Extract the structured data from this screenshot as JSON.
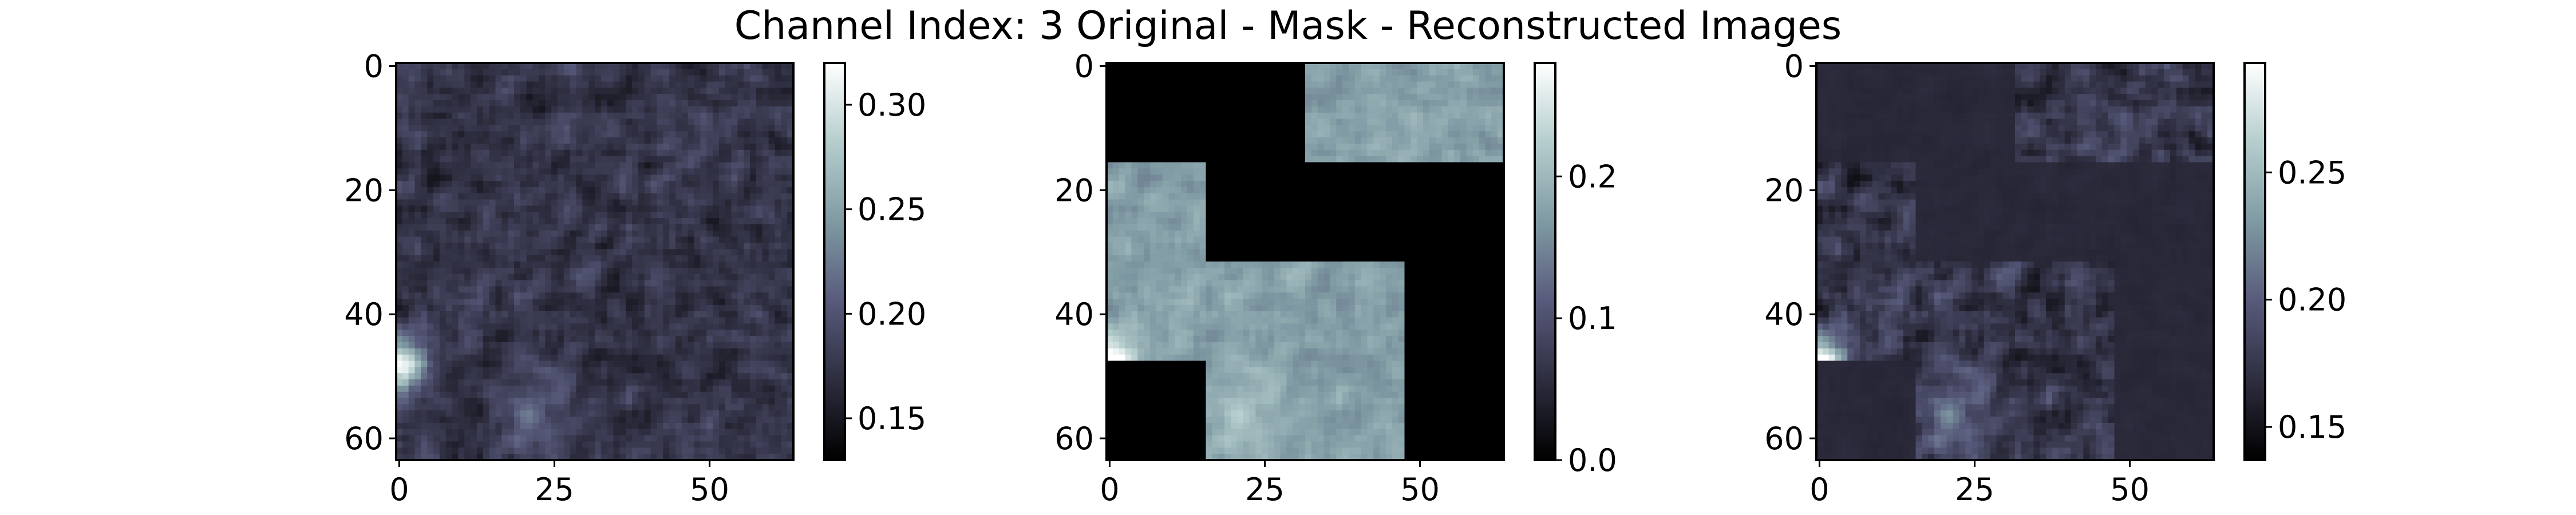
{
  "figure": {
    "title": "Channel Index: 3 Original - Mask - Reconstructed Images"
  },
  "colormap": [
    "#000000",
    "#2d2d3f",
    "#585a7b",
    "#7f9aa3",
    "#b5cdcd",
    "#ffffff"
  ],
  "chart_data": [
    {
      "type": "heatmap",
      "panel": "original",
      "xlim": [
        0,
        63
      ],
      "ylim": [
        0,
        63
      ],
      "x_ticks": [
        "0",
        "25",
        "50"
      ],
      "y_ticks": [
        "0",
        "20",
        "40",
        "60"
      ],
      "colorbar": {
        "range": [
          0.13,
          0.32
        ],
        "ticks": [
          "0.15",
          "0.20",
          "0.25",
          "0.30"
        ]
      }
    },
    {
      "type": "heatmap",
      "panel": "mask",
      "xlim": [
        0,
        63
      ],
      "ylim": [
        0,
        63
      ],
      "x_ticks": [
        "0",
        "25",
        "50"
      ],
      "y_ticks": [
        "0",
        "20",
        "40",
        "60"
      ],
      "patch_grid": {
        "rows": 4,
        "cols": 4,
        "patch_size": 16
      },
      "visible_patches": [
        [
          0,
          2
        ],
        [
          0,
          3
        ],
        [
          1,
          0
        ],
        [
          2,
          0
        ],
        [
          2,
          1
        ],
        [
          2,
          2
        ],
        [
          3,
          1
        ],
        [
          3,
          2
        ]
      ],
      "colorbar": {
        "range": [
          0.0,
          0.28
        ],
        "ticks": [
          "0.0",
          "0.1",
          "0.2"
        ]
      }
    },
    {
      "type": "heatmap",
      "panel": "reconstructed",
      "xlim": [
        0,
        63
      ],
      "ylim": [
        0,
        63
      ],
      "x_ticks": [
        "0",
        "25",
        "50"
      ],
      "y_ticks": [
        "0",
        "20",
        "40",
        "60"
      ],
      "colorbar": {
        "range": [
          0.137,
          0.293
        ],
        "ticks": [
          "0.15",
          "0.20",
          "0.25"
        ]
      }
    }
  ]
}
